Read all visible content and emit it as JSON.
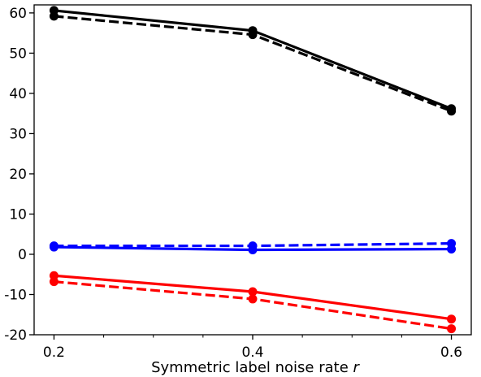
{
  "chart_data": {
    "type": "line",
    "xlabel_text": "Symmetric label noise rate ",
    "xlabel_var": "r",
    "ylabel": "",
    "title": "",
    "xlim": [
      0.18,
      0.62
    ],
    "ylim": [
      -20,
      62
    ],
    "x_ticks_major": [
      0.2,
      0.4,
      0.6
    ],
    "x_tick_labels": [
      "0.2",
      "0.4",
      "0.6"
    ],
    "x_ticks_minor": [
      0.25,
      0.3,
      0.35,
      0.45,
      0.5,
      0.55
    ],
    "y_ticks": [
      -20,
      -10,
      0,
      10,
      20,
      30,
      40,
      50,
      60
    ],
    "y_tick_labels": [
      "-20",
      "-10",
      "0",
      "10",
      "20",
      "30",
      "40",
      "50",
      "60"
    ],
    "grid": false,
    "legend": "none",
    "x": [
      0.2,
      0.4,
      0.6
    ],
    "series": [
      {
        "color": "#000000",
        "style": "solid",
        "values": [
          60.6,
          55.6,
          36.2
        ]
      },
      {
        "color": "#000000",
        "style": "dashed",
        "values": [
          59.2,
          54.6,
          35.6
        ]
      },
      {
        "color": "#0000ff",
        "style": "solid",
        "values": [
          1.8,
          1.1,
          1.3
        ]
      },
      {
        "color": "#0000ff",
        "style": "dashed",
        "values": [
          2.1,
          2.1,
          2.7
        ]
      },
      {
        "color": "#ff0000",
        "style": "solid",
        "values": [
          -5.3,
          -9.3,
          -16.1
        ]
      },
      {
        "color": "#ff0000",
        "style": "dashed",
        "values": [
          -6.8,
          -11.1,
          -18.5
        ]
      }
    ]
  }
}
